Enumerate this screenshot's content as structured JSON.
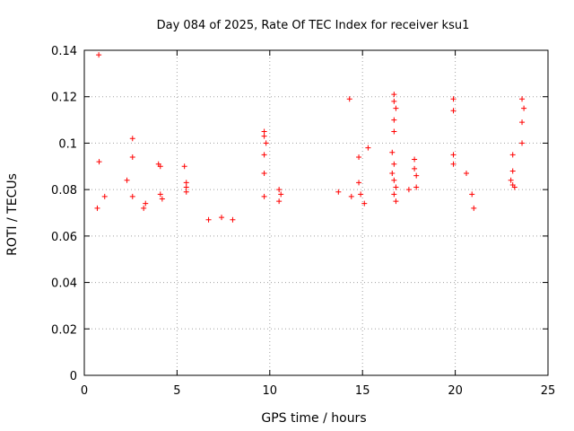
{
  "chart_data": {
    "type": "scatter",
    "title": "Day 084 of 2025, Rate Of TEC Index for receiver ksu1",
    "xlabel": "GPS time / hours",
    "ylabel": "ROTI / TECUs",
    "xlim": [
      0,
      25
    ],
    "ylim": [
      0,
      0.14
    ],
    "x_ticks": [
      0,
      5,
      10,
      15,
      20,
      25
    ],
    "x_tick_labels": [
      "0",
      "5",
      "10",
      "15",
      "20",
      "25"
    ],
    "y_ticks": [
      0,
      0.02,
      0.04,
      0.06,
      0.08,
      0.1,
      0.12,
      0.14
    ],
    "y_tick_labels": [
      "0",
      "0.02",
      "0.04",
      "0.06",
      "0.08",
      "0.1",
      "0.12",
      "0.14"
    ],
    "grid": true,
    "marker": "+",
    "color": "#ff0000",
    "series": [
      {
        "name": "ROTI",
        "points": [
          [
            0.78,
            0.138
          ],
          [
            0.8,
            0.092
          ],
          [
            0.7,
            0.072
          ],
          [
            1.1,
            0.077
          ],
          [
            2.6,
            0.102
          ],
          [
            2.6,
            0.094
          ],
          [
            2.3,
            0.084
          ],
          [
            2.6,
            0.077
          ],
          [
            3.3,
            0.074
          ],
          [
            3.2,
            0.072
          ],
          [
            4.0,
            0.091
          ],
          [
            4.1,
            0.09
          ],
          [
            4.1,
            0.078
          ],
          [
            4.2,
            0.076
          ],
          [
            5.4,
            0.09
          ],
          [
            5.5,
            0.083
          ],
          [
            5.5,
            0.081
          ],
          [
            5.5,
            0.079
          ],
          [
            6.7,
            0.067
          ],
          [
            7.4,
            0.068
          ],
          [
            8.0,
            0.067
          ],
          [
            9.7,
            0.105
          ],
          [
            9.7,
            0.103
          ],
          [
            9.8,
            0.1
          ],
          [
            9.7,
            0.095
          ],
          [
            9.7,
            0.087
          ],
          [
            9.7,
            0.077
          ],
          [
            10.5,
            0.08
          ],
          [
            10.6,
            0.078
          ],
          [
            10.5,
            0.075
          ],
          [
            13.7,
            0.079
          ],
          [
            14.3,
            0.119
          ],
          [
            14.4,
            0.077
          ],
          [
            14.8,
            0.094
          ],
          [
            14.8,
            0.083
          ],
          [
            14.9,
            0.078
          ],
          [
            15.1,
            0.074
          ],
          [
            15.3,
            0.098
          ],
          [
            16.7,
            0.121
          ],
          [
            16.7,
            0.118
          ],
          [
            16.8,
            0.115
          ],
          [
            16.7,
            0.11
          ],
          [
            16.7,
            0.105
          ],
          [
            16.6,
            0.096
          ],
          [
            16.7,
            0.091
          ],
          [
            16.6,
            0.087
          ],
          [
            16.7,
            0.084
          ],
          [
            16.8,
            0.081
          ],
          [
            16.7,
            0.078
          ],
          [
            16.8,
            0.075
          ],
          [
            17.8,
            0.093
          ],
          [
            17.8,
            0.089
          ],
          [
            17.9,
            0.086
          ],
          [
            17.9,
            0.081
          ],
          [
            17.5,
            0.08
          ],
          [
            19.9,
            0.119
          ],
          [
            19.9,
            0.114
          ],
          [
            19.9,
            0.095
          ],
          [
            19.9,
            0.091
          ],
          [
            20.6,
            0.087
          ],
          [
            20.9,
            0.078
          ],
          [
            21.0,
            0.072
          ],
          [
            23.1,
            0.095
          ],
          [
            23.1,
            0.088
          ],
          [
            23.0,
            0.084
          ],
          [
            23.1,
            0.082
          ],
          [
            23.2,
            0.081
          ],
          [
            23.6,
            0.119
          ],
          [
            23.7,
            0.115
          ],
          [
            23.6,
            0.109
          ],
          [
            23.6,
            0.1
          ]
        ]
      }
    ]
  }
}
